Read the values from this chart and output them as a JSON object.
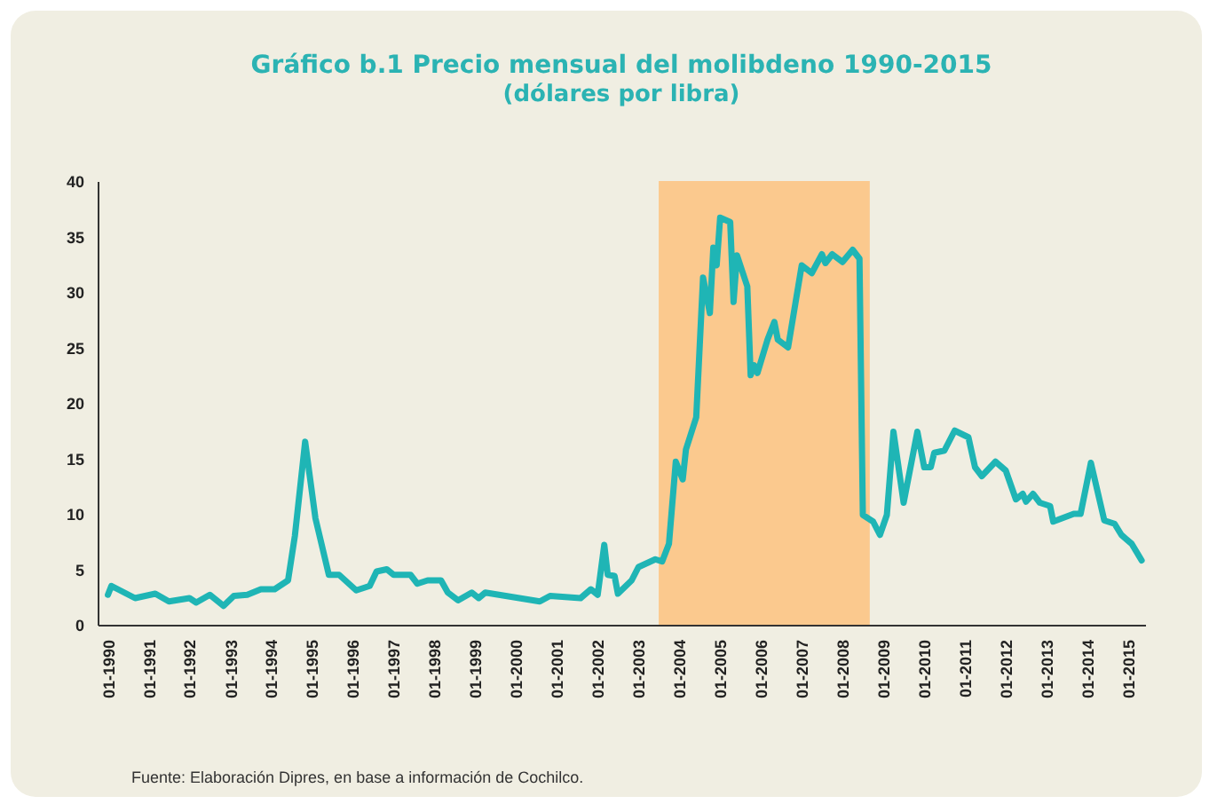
{
  "chart_data": {
    "type": "line",
    "title": "Gráfico b.1 Precio mensual del molibdeno 1990-2015",
    "subtitle": "(dólares por libra)",
    "annotations": [
      "Fuente: Elaboración Dipres, en base a información de Cochilco."
    ],
    "x": [
      "1990-01",
      "1990-02",
      "1990-09",
      "1991-03",
      "1991-07",
      "1992-01",
      "1992-03",
      "1992-07",
      "1992-11",
      "1993-02",
      "1993-06",
      "1993-10",
      "1994-02",
      "1994-06",
      "1994-08",
      "1994-11",
      "1995-02",
      "1995-06",
      "1995-09",
      "1996-02",
      "1996-06",
      "1996-08",
      "1996-11",
      "1997-01",
      "1997-06",
      "1997-08",
      "1997-11",
      "1998-03",
      "1998-05",
      "1998-08",
      "1998-12",
      "1999-02",
      "1999-04",
      "2000-08",
      "2000-11",
      "2001-08",
      "2001-11",
      "2002-01",
      "2002-03",
      "2002-04",
      "2002-06",
      "2002-07",
      "2002-11",
      "2003-01",
      "2003-06",
      "2003-08",
      "2003-10",
      "2003-12",
      "2004-02",
      "2004-03",
      "2004-06",
      "2004-08",
      "2004-10",
      "2004-11",
      "2004-12",
      "2005-01",
      "2005-04",
      "2005-05",
      "2005-06",
      "2005-09",
      "2005-10",
      "2005-11",
      "2005-12",
      "2006-03",
      "2006-05",
      "2006-06",
      "2006-09",
      "2007-01",
      "2007-04",
      "2007-07",
      "2007-08",
      "2007-10",
      "2008-01",
      "2008-04",
      "2008-06",
      "2008-07",
      "2008-10",
      "2008-12",
      "2009-02",
      "2009-04",
      "2009-07",
      "2009-11",
      "2010-01",
      "2010-03",
      "2010-04",
      "2010-07",
      "2010-10",
      "2011-02",
      "2011-04",
      "2011-06",
      "2011-10",
      "2012-01",
      "2012-04",
      "2012-06",
      "2012-07",
      "2012-09",
      "2012-11",
      "2013-02",
      "2013-03",
      "2013-09",
      "2013-11",
      "2014-02",
      "2014-06",
      "2014-09",
      "2014-11",
      "2015-02",
      "2015-05"
    ],
    "series": [
      {
        "color": "#1fb5b5",
        "values": [
          2.7,
          3.5,
          2.4,
          2.8,
          2.1,
          2.4,
          2.0,
          2.7,
          1.7,
          2.6,
          2.7,
          3.2,
          3.2,
          4.0,
          8.0,
          16.5,
          9.6,
          4.5,
          4.5,
          3.1,
          3.5,
          4.8,
          5.0,
          4.5,
          4.5,
          3.7,
          4.0,
          4.0,
          2.9,
          2.2,
          2.9,
          2.4,
          2.9,
          2.1,
          2.6,
          2.4,
          3.2,
          2.7,
          7.2,
          4.5,
          4.4,
          2.8,
          4.0,
          5.2,
          5.9,
          5.7,
          7.3,
          14.7,
          13.1,
          15.8,
          18.7,
          31.3,
          28.1,
          34.0,
          32.4,
          36.7,
          36.3,
          29.1,
          33.3,
          30.5,
          22.5,
          23.4,
          22.7,
          25.7,
          27.3,
          25.7,
          25.0,
          32.4,
          31.7,
          33.4,
          32.6,
          33.4,
          32.7,
          33.8,
          33.0,
          9.9,
          9.3,
          8.1,
          9.9,
          17.4,
          11.0,
          17.4,
          14.2,
          14.2,
          15.5,
          15.7,
          17.5,
          16.9,
          14.2,
          13.4,
          14.7,
          13.9,
          11.3,
          11.8,
          11.1,
          11.8,
          11.0,
          10.7,
          9.3,
          10.0,
          10.0,
          14.6,
          9.4,
          9.1,
          8.1,
          7.3,
          5.8
        ]
      }
    ],
    "xlim": [
      "1989-10",
      "2015-06"
    ],
    "xticks": [
      {
        "value": "1990-01",
        "label": "01-1990"
      },
      {
        "value": "1991-01",
        "label": "01-1991"
      },
      {
        "value": "1992-01",
        "label": "01-1992"
      },
      {
        "value": "1993-01",
        "label": "01-1993"
      },
      {
        "value": "1994-01",
        "label": "01-1994"
      },
      {
        "value": "1995-01",
        "label": "01-1995"
      },
      {
        "value": "1996-01",
        "label": "01-1996"
      },
      {
        "value": "1997-01",
        "label": "01-1997"
      },
      {
        "value": "1998-01",
        "label": "01-1998"
      },
      {
        "value": "1999-01",
        "label": "01-1999"
      },
      {
        "value": "2000-01",
        "label": "01-2000"
      },
      {
        "value": "2001-01",
        "label": "01-2001"
      },
      {
        "value": "2002-01",
        "label": "01-2002"
      },
      {
        "value": "2003-01",
        "label": "01-2003"
      },
      {
        "value": "2004-01",
        "label": "01-2004"
      },
      {
        "value": "2005-01",
        "label": "01-2005"
      },
      {
        "value": "2006-01",
        "label": "01-2006"
      },
      {
        "value": "2007-01",
        "label": "01-2007"
      },
      {
        "value": "2008-01",
        "label": "01-2008"
      },
      {
        "value": "2009-01",
        "label": "01-2009"
      },
      {
        "value": "2010-01",
        "label": "01-2010"
      },
      {
        "value": "2011-01",
        "label": "01-2011"
      },
      {
        "value": "2012-01",
        "label": "01-2012"
      },
      {
        "value": "2013-01",
        "label": "01-2013"
      },
      {
        "value": "2014-01",
        "label": "01-2014"
      },
      {
        "value": "2015-01",
        "label": "01-2015"
      }
    ],
    "ylim": [
      0,
      40
    ],
    "yticks": [
      0,
      5,
      10,
      15,
      20,
      25,
      30,
      35,
      40
    ],
    "bands": [
      {
        "axis": "x",
        "from": "2003-07",
        "to": "2008-09",
        "color": "#fbc98e"
      }
    ]
  }
}
